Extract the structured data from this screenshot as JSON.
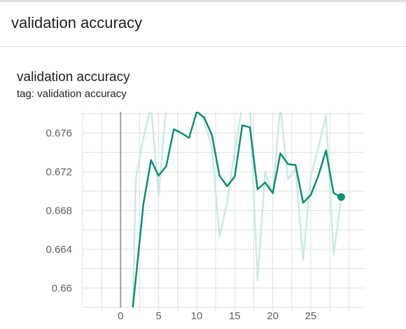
{
  "section": {
    "title": "validation accuracy"
  },
  "card": {
    "title": "validation accuracy",
    "tag": "tag: validation accuracy"
  },
  "colors": {
    "smoothed": "#0b8f74",
    "raw": "#cde9e2",
    "grid": "#e0e0e0",
    "zero_line": "#9e9e9e"
  },
  "chart_data": {
    "type": "line",
    "title": "validation accuracy",
    "xlabel": "",
    "ylabel": "",
    "xlim": [
      -5,
      32
    ],
    "ylim": [
      0.658,
      0.6782
    ],
    "x_ticks": [
      0,
      5,
      10,
      15,
      20,
      25
    ],
    "y_ticks": [
      0.66,
      0.664,
      0.668,
      0.672,
      0.676
    ],
    "y_tick_labels": [
      "0.66",
      "0.664",
      "0.668",
      "0.672",
      "0.676"
    ],
    "grid": true,
    "series": [
      {
        "role": "raw",
        "x": [
          1.6,
          2,
          3,
          4,
          5,
          6,
          7,
          8,
          9,
          10,
          11,
          12,
          13,
          14,
          15,
          16,
          17,
          18,
          19,
          20,
          21,
          22,
          23,
          24,
          25,
          26,
          27,
          28,
          29
        ],
        "values": [
          0.658,
          0.6713,
          0.6755,
          0.6788,
          0.6695,
          0.6788,
          0.6788,
          0.6788,
          0.6788,
          0.6788,
          0.6772,
          0.6745,
          0.6653,
          0.6688,
          0.6742,
          0.6788,
          0.6788,
          0.6608,
          0.672,
          0.6697,
          0.6788,
          0.6712,
          0.6723,
          0.6629,
          0.6715,
          0.6745,
          0.6778,
          0.6634,
          0.6693
        ]
      },
      {
        "role": "smoothed",
        "x": [
          1.6,
          2,
          3,
          4,
          5,
          6,
          7,
          8,
          9,
          10,
          11,
          12,
          13,
          14,
          15,
          16,
          17,
          18,
          19,
          20,
          21,
          22,
          23,
          24,
          25,
          26,
          27,
          28,
          29
        ],
        "values": [
          0.658,
          0.661,
          0.6687,
          0.6732,
          0.6716,
          0.6726,
          0.6764,
          0.676,
          0.6755,
          0.6782,
          0.6776,
          0.6758,
          0.6716,
          0.6705,
          0.6715,
          0.6768,
          0.6766,
          0.6702,
          0.6709,
          0.6698,
          0.6739,
          0.6728,
          0.6727,
          0.6688,
          0.6696,
          0.6716,
          0.6742,
          0.6698,
          0.6694
        ]
      }
    ]
  }
}
